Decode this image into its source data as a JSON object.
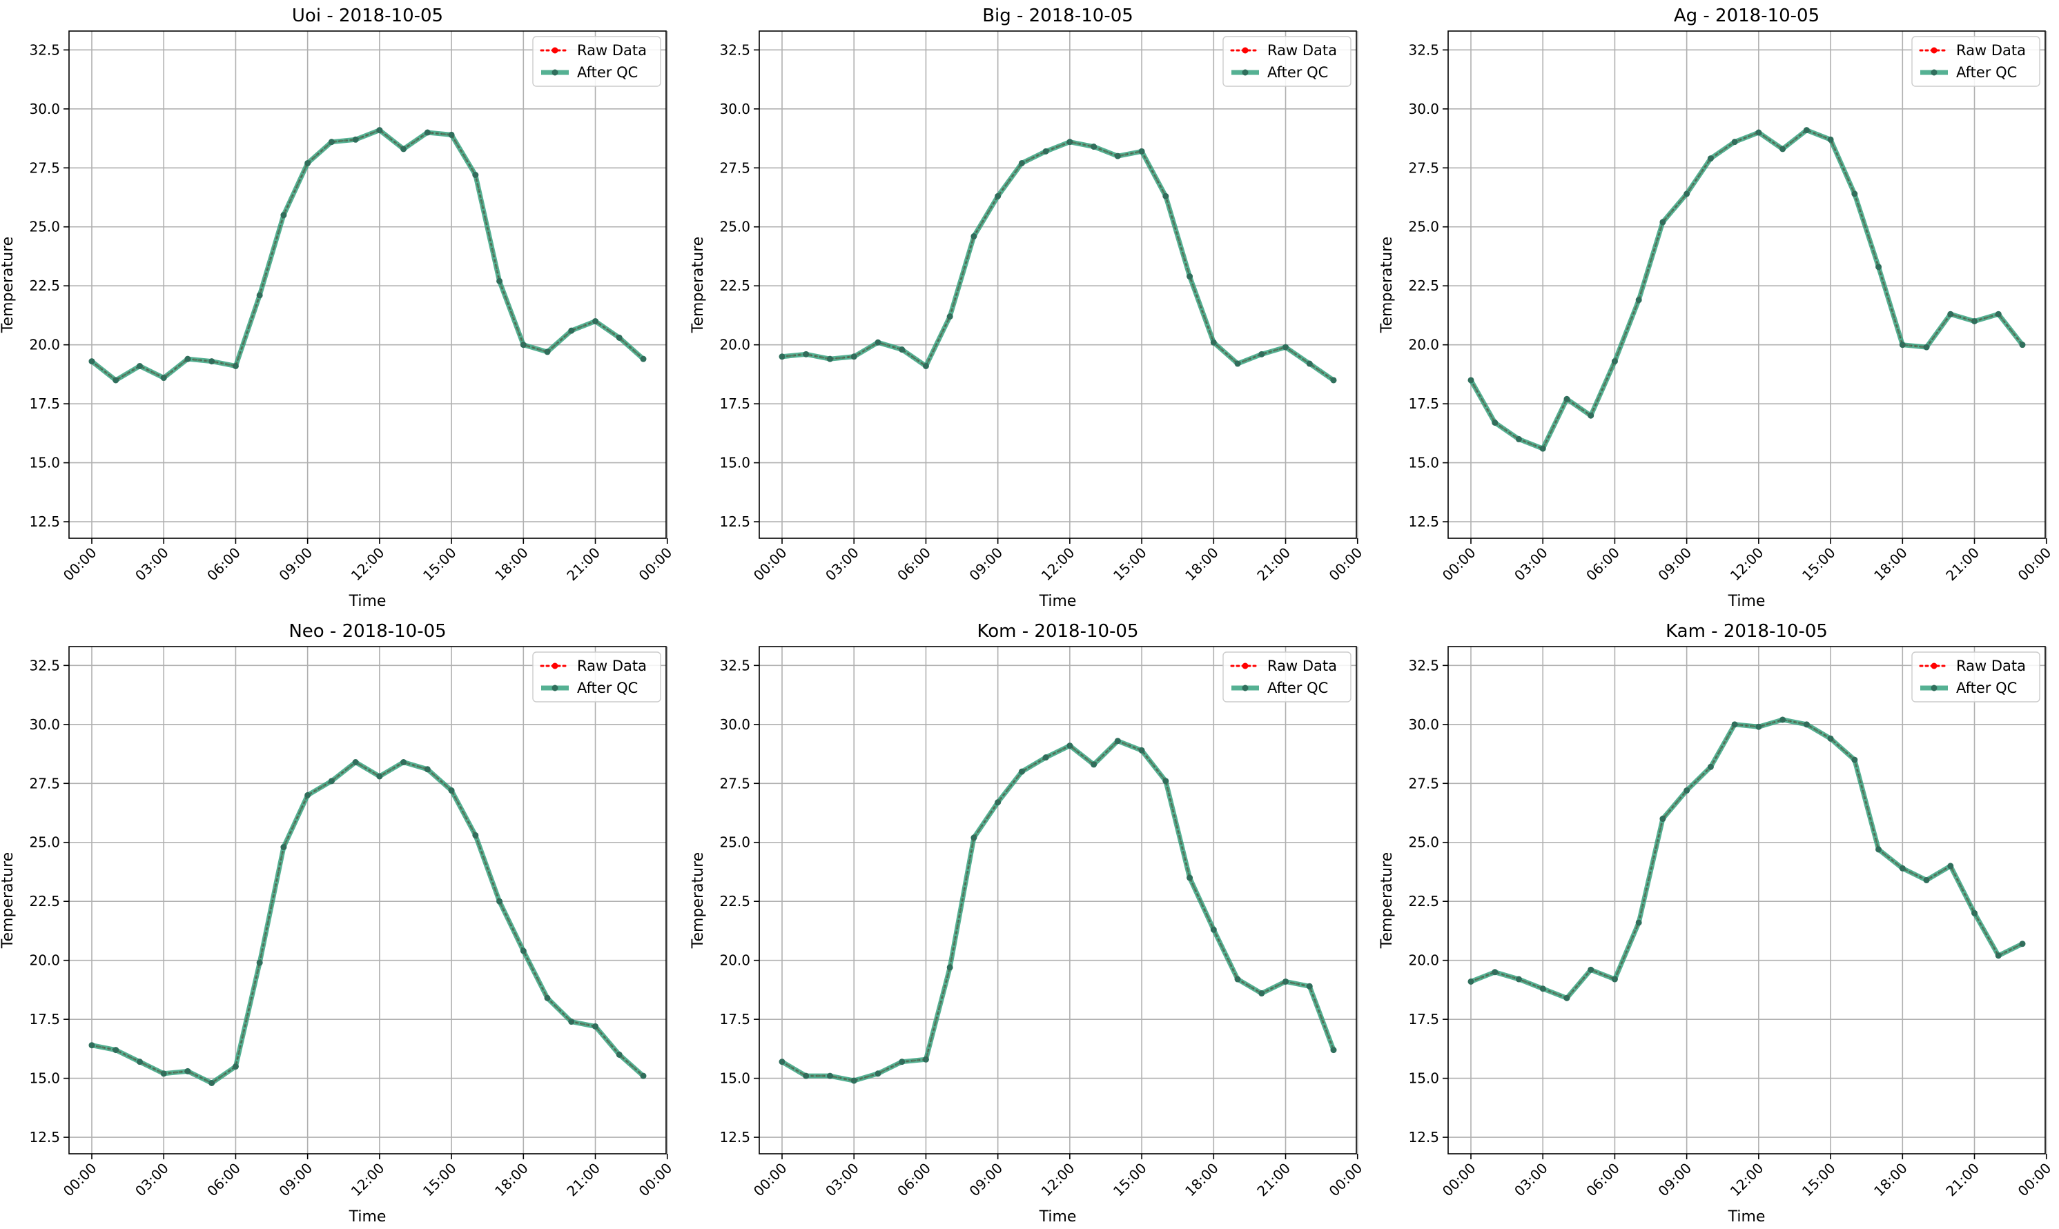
{
  "chart_data": [
    {
      "type": "line",
      "title": "Uoi - 2018-10-05",
      "xlabel": "Time",
      "ylabel": "Temperature",
      "ylim": [
        11.8,
        33.3
      ],
      "xlim": [
        -0.95,
        23.95
      ],
      "yticks": [
        12.5,
        15.0,
        17.5,
        20.0,
        22.5,
        25.0,
        27.5,
        30.0,
        32.5
      ],
      "xticks": [
        "00:00",
        "03:00",
        "06:00",
        "09:00",
        "12:00",
        "15:00",
        "18:00",
        "21:00",
        "00:00"
      ],
      "grid": true,
      "legend": "top-right",
      "x": [
        "00:00",
        "01:00",
        "02:00",
        "03:00",
        "04:00",
        "05:00",
        "06:00",
        "07:00",
        "08:00",
        "09:00",
        "10:00",
        "11:00",
        "12:00",
        "13:00",
        "14:00",
        "15:00",
        "16:00",
        "17:00",
        "18:00",
        "19:00",
        "20:00",
        "21:00",
        "22:00",
        "23:00"
      ],
      "series": [
        {
          "name": "Raw Data",
          "color": "#ff0000",
          "values": [
            19.3,
            18.5,
            19.1,
            18.6,
            19.4,
            19.3,
            19.1,
            22.1,
            25.5,
            27.7,
            28.6,
            28.7,
            29.1,
            28.3,
            29.0,
            28.9,
            27.2,
            22.7,
            20.0,
            19.7,
            20.6,
            21.0,
            20.3,
            19.4
          ]
        },
        {
          "name": "After QC",
          "color": "#2a9d78",
          "values": [
            19.3,
            18.5,
            19.1,
            18.6,
            19.4,
            19.3,
            19.1,
            22.1,
            25.5,
            27.7,
            28.6,
            28.7,
            29.1,
            28.3,
            29.0,
            28.9,
            27.2,
            22.7,
            20.0,
            19.7,
            20.6,
            21.0,
            20.3,
            19.4
          ]
        }
      ]
    },
    {
      "type": "line",
      "title": "Big - 2018-10-05",
      "xlabel": "Time",
      "ylabel": "Temperature",
      "ylim": [
        11.8,
        33.3
      ],
      "xlim": [
        -0.95,
        23.95
      ],
      "yticks": [
        12.5,
        15.0,
        17.5,
        20.0,
        22.5,
        25.0,
        27.5,
        30.0,
        32.5
      ],
      "xticks": [
        "00:00",
        "03:00",
        "06:00",
        "09:00",
        "12:00",
        "15:00",
        "18:00",
        "21:00",
        "00:00"
      ],
      "grid": true,
      "legend": "top-right",
      "x": [
        "00:00",
        "01:00",
        "02:00",
        "03:00",
        "04:00",
        "05:00",
        "06:00",
        "07:00",
        "08:00",
        "09:00",
        "10:00",
        "11:00",
        "12:00",
        "13:00",
        "14:00",
        "15:00",
        "16:00",
        "17:00",
        "18:00",
        "19:00",
        "20:00",
        "21:00",
        "22:00",
        "23:00"
      ],
      "series": [
        {
          "name": "Raw Data",
          "color": "#ff0000",
          "values": [
            19.5,
            19.6,
            19.4,
            19.5,
            20.1,
            19.8,
            19.1,
            21.2,
            24.6,
            26.3,
            27.7,
            28.2,
            28.6,
            28.4,
            28.0,
            28.2,
            26.3,
            22.9,
            20.1,
            19.2,
            19.6,
            19.9,
            19.2,
            18.5
          ]
        },
        {
          "name": "After QC",
          "color": "#2a9d78",
          "values": [
            19.5,
            19.6,
            19.4,
            19.5,
            20.1,
            19.8,
            19.1,
            21.2,
            24.6,
            26.3,
            27.7,
            28.2,
            28.6,
            28.4,
            28.0,
            28.2,
            26.3,
            22.9,
            20.1,
            19.2,
            19.6,
            19.9,
            19.2,
            18.5
          ]
        }
      ]
    },
    {
      "type": "line",
      "title": "Ag - 2018-10-05",
      "xlabel": "Time",
      "ylabel": "Temperature",
      "ylim": [
        11.8,
        33.3
      ],
      "xlim": [
        -0.95,
        23.95
      ],
      "yticks": [
        12.5,
        15.0,
        17.5,
        20.0,
        22.5,
        25.0,
        27.5,
        30.0,
        32.5
      ],
      "xticks": [
        "00:00",
        "03:00",
        "06:00",
        "09:00",
        "12:00",
        "15:00",
        "18:00",
        "21:00",
        "00:00"
      ],
      "grid": true,
      "legend": "top-right",
      "x": [
        "00:00",
        "01:00",
        "02:00",
        "03:00",
        "04:00",
        "05:00",
        "06:00",
        "07:00",
        "08:00",
        "09:00",
        "10:00",
        "11:00",
        "12:00",
        "13:00",
        "14:00",
        "15:00",
        "16:00",
        "17:00",
        "18:00",
        "19:00",
        "20:00",
        "21:00",
        "22:00",
        "23:00"
      ],
      "series": [
        {
          "name": "Raw Data",
          "color": "#ff0000",
          "values": [
            18.5,
            16.7,
            16.0,
            15.6,
            17.7,
            17.0,
            19.3,
            21.9,
            25.2,
            26.4,
            27.9,
            28.6,
            29.0,
            28.3,
            29.1,
            28.7,
            26.4,
            23.3,
            20.0,
            19.9,
            21.3,
            21.0,
            21.3,
            20.0
          ]
        },
        {
          "name": "After QC",
          "color": "#2a9d78",
          "values": [
            18.5,
            16.7,
            16.0,
            15.6,
            17.7,
            17.0,
            19.3,
            21.9,
            25.2,
            26.4,
            27.9,
            28.6,
            29.0,
            28.3,
            29.1,
            28.7,
            26.4,
            23.3,
            20.0,
            19.9,
            21.3,
            21.0,
            21.3,
            20.0
          ]
        }
      ]
    },
    {
      "type": "line",
      "title": "Neo - 2018-10-05",
      "xlabel": "Time",
      "ylabel": "Temperature",
      "ylim": [
        11.8,
        33.3
      ],
      "xlim": [
        -0.95,
        23.95
      ],
      "yticks": [
        12.5,
        15.0,
        17.5,
        20.0,
        22.5,
        25.0,
        27.5,
        30.0,
        32.5
      ],
      "xticks": [
        "00:00",
        "03:00",
        "06:00",
        "09:00",
        "12:00",
        "15:00",
        "18:00",
        "21:00",
        "00:00"
      ],
      "grid": true,
      "legend": "top-right",
      "x": [
        "00:00",
        "01:00",
        "02:00",
        "03:00",
        "04:00",
        "05:00",
        "06:00",
        "07:00",
        "08:00",
        "09:00",
        "10:00",
        "11:00",
        "12:00",
        "13:00",
        "14:00",
        "15:00",
        "16:00",
        "17:00",
        "18:00",
        "19:00",
        "20:00",
        "21:00",
        "22:00",
        "23:00"
      ],
      "series": [
        {
          "name": "Raw Data",
          "color": "#ff0000",
          "values": [
            16.4,
            16.2,
            15.7,
            15.2,
            15.3,
            14.8,
            15.5,
            19.9,
            24.8,
            27.0,
            27.6,
            28.4,
            27.8,
            28.4,
            28.1,
            27.2,
            25.3,
            22.5,
            20.4,
            18.4,
            17.4,
            17.2,
            16.0,
            15.1
          ]
        },
        {
          "name": "After QC",
          "color": "#2a9d78",
          "values": [
            16.4,
            16.2,
            15.7,
            15.2,
            15.3,
            14.8,
            15.5,
            19.9,
            24.8,
            27.0,
            27.6,
            28.4,
            27.8,
            28.4,
            28.1,
            27.2,
            25.3,
            22.5,
            20.4,
            18.4,
            17.4,
            17.2,
            16.0,
            15.1
          ]
        }
      ]
    },
    {
      "type": "line",
      "title": "Kom - 2018-10-05",
      "xlabel": "Time",
      "ylabel": "Temperature",
      "ylim": [
        11.8,
        33.3
      ],
      "xlim": [
        -0.95,
        23.95
      ],
      "yticks": [
        12.5,
        15.0,
        17.5,
        20.0,
        22.5,
        25.0,
        27.5,
        30.0,
        32.5
      ],
      "xticks": [
        "00:00",
        "03:00",
        "06:00",
        "09:00",
        "12:00",
        "15:00",
        "18:00",
        "21:00",
        "00:00"
      ],
      "grid": true,
      "legend": "top-right",
      "x": [
        "00:00",
        "01:00",
        "02:00",
        "03:00",
        "04:00",
        "05:00",
        "06:00",
        "07:00",
        "08:00",
        "09:00",
        "10:00",
        "11:00",
        "12:00",
        "13:00",
        "14:00",
        "15:00",
        "16:00",
        "17:00",
        "18:00",
        "19:00",
        "20:00",
        "21:00",
        "22:00",
        "23:00"
      ],
      "series": [
        {
          "name": "Raw Data",
          "color": "#ff0000",
          "values": [
            15.7,
            15.1,
            15.1,
            14.9,
            15.2,
            15.7,
            15.8,
            19.7,
            25.2,
            26.7,
            28.0,
            28.6,
            29.1,
            28.3,
            29.3,
            28.9,
            27.6,
            23.5,
            21.3,
            19.2,
            18.6,
            19.1,
            18.9,
            16.2
          ]
        },
        {
          "name": "After QC",
          "color": "#2a9d78",
          "values": [
            15.7,
            15.1,
            15.1,
            14.9,
            15.2,
            15.7,
            15.8,
            19.7,
            25.2,
            26.7,
            28.0,
            28.6,
            29.1,
            28.3,
            29.3,
            28.9,
            27.6,
            23.5,
            21.3,
            19.2,
            18.6,
            19.1,
            18.9,
            16.2
          ]
        }
      ]
    },
    {
      "type": "line",
      "title": "Kam - 2018-10-05",
      "xlabel": "Time",
      "ylabel": "Temperature",
      "ylim": [
        11.8,
        33.3
      ],
      "xlim": [
        -0.95,
        23.95
      ],
      "yticks": [
        12.5,
        15.0,
        17.5,
        20.0,
        22.5,
        25.0,
        27.5,
        30.0,
        32.5
      ],
      "xticks": [
        "00:00",
        "03:00",
        "06:00",
        "09:00",
        "12:00",
        "15:00",
        "18:00",
        "21:00",
        "00:00"
      ],
      "grid": true,
      "legend": "top-right",
      "x": [
        "00:00",
        "01:00",
        "02:00",
        "03:00",
        "04:00",
        "05:00",
        "06:00",
        "07:00",
        "08:00",
        "09:00",
        "10:00",
        "11:00",
        "12:00",
        "13:00",
        "14:00",
        "15:00",
        "16:00",
        "17:00",
        "18:00",
        "19:00",
        "20:00",
        "21:00",
        "22:00",
        "23:00"
      ],
      "series": [
        {
          "name": "Raw Data",
          "color": "#ff0000",
          "values": [
            19.1,
            19.5,
            19.2,
            18.8,
            18.4,
            19.6,
            19.2,
            21.6,
            26.0,
            27.2,
            28.2,
            30.0,
            29.9,
            30.2,
            30.0,
            29.4,
            28.5,
            24.7,
            23.9,
            23.4,
            24.0,
            22.0,
            20.2,
            20.7
          ]
        },
        {
          "name": "After QC",
          "color": "#2a9d78",
          "values": [
            19.1,
            19.5,
            19.2,
            18.8,
            18.4,
            19.6,
            19.2,
            21.6,
            26.0,
            27.2,
            28.2,
            30.0,
            29.9,
            30.2,
            30.0,
            29.4,
            28.5,
            24.7,
            23.9,
            23.4,
            24.0,
            22.0,
            20.2,
            20.7
          ]
        }
      ]
    }
  ]
}
